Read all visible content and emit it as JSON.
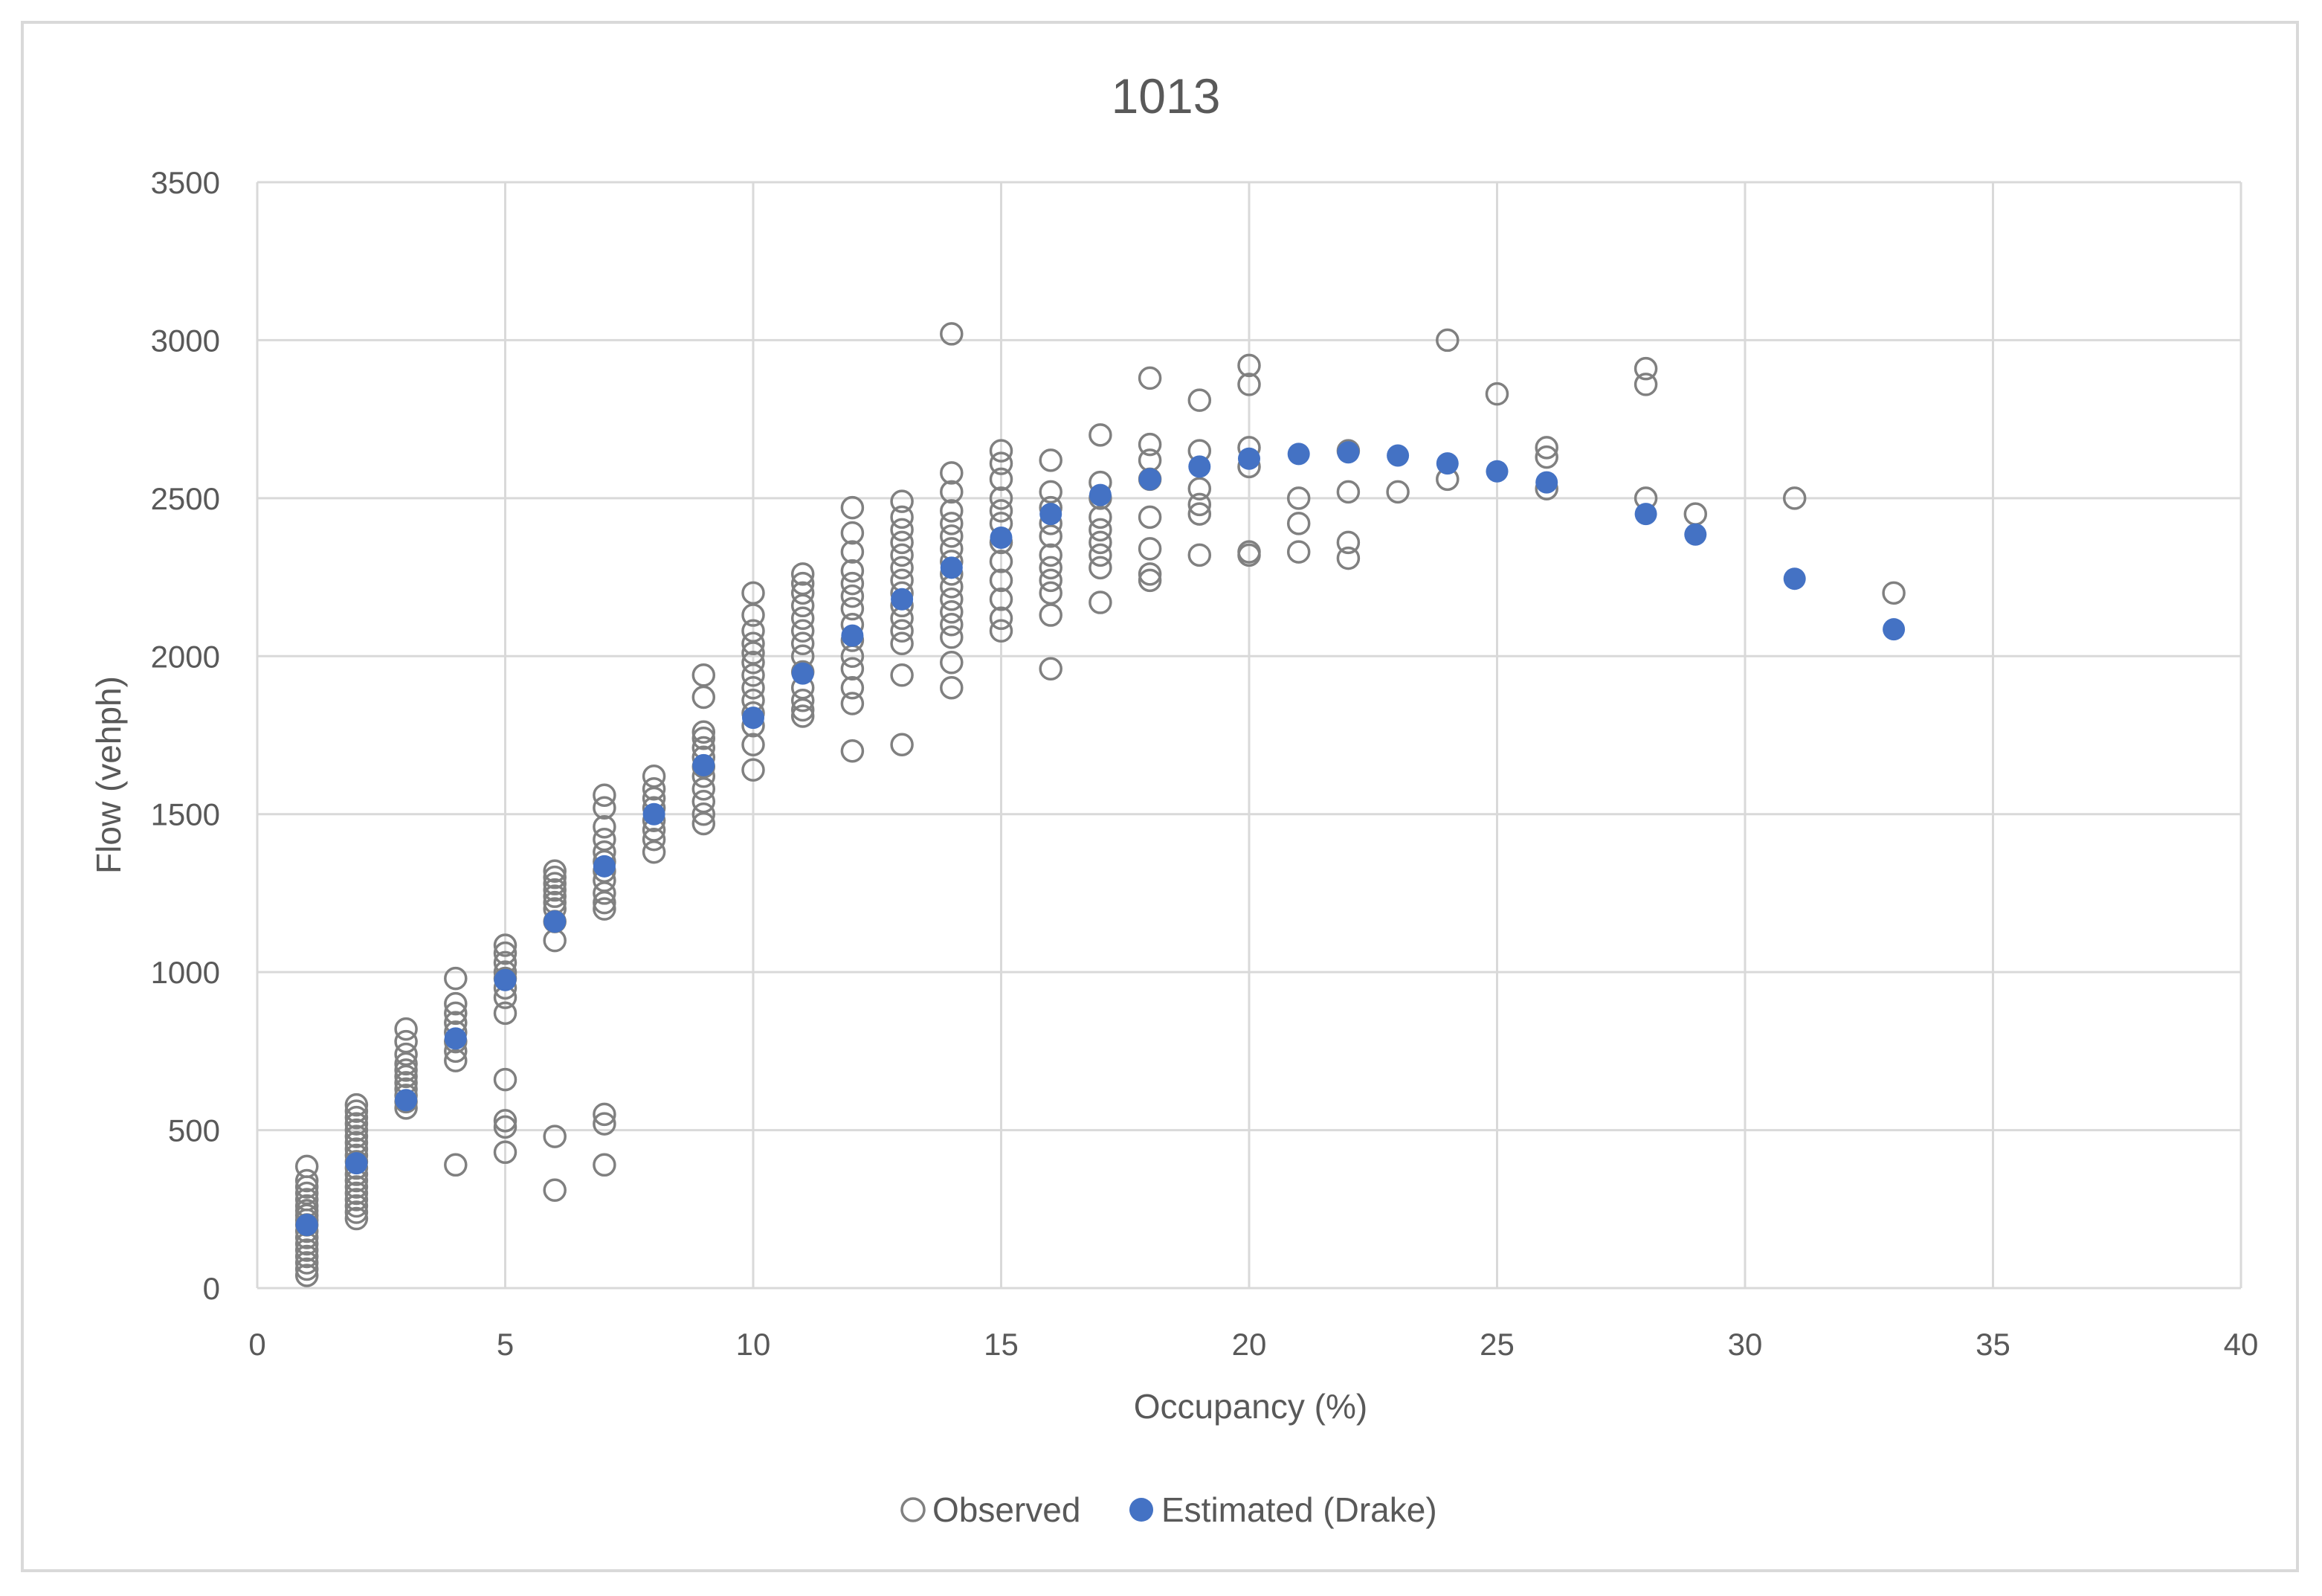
{
  "chart_data": {
    "type": "scatter",
    "title": "1013",
    "xlabel": "Occupancy (%)",
    "ylabel": "Flow (vehph)",
    "xlim": [
      0,
      40
    ],
    "ylim": [
      0,
      3500
    ],
    "x_ticks": [
      0,
      5,
      10,
      15,
      20,
      25,
      30,
      35,
      40
    ],
    "y_ticks": [
      0,
      500,
      1000,
      1500,
      2000,
      2500,
      3000,
      3500
    ],
    "x_tick_labels": [
      "0",
      "5",
      "10",
      "15",
      "20",
      "25",
      "30",
      "35",
      "40"
    ],
    "y_tick_labels": [
      "0",
      "500",
      "1000",
      "1500",
      "2000",
      "2500",
      "3000",
      "3500"
    ],
    "grid": true,
    "legend_position": "bottom",
    "colors": {
      "observed": "#808080",
      "estimated": "#4472c4",
      "grid": "#d9d9d9",
      "text": "#595959"
    },
    "series": [
      {
        "name": "Observed",
        "marker": "hollow-circle",
        "points": [
          [
            1,
            40
          ],
          [
            1,
            60
          ],
          [
            1,
            80
          ],
          [
            1,
            100
          ],
          [
            1,
            120
          ],
          [
            1,
            140
          ],
          [
            1,
            160
          ],
          [
            1,
            180
          ],
          [
            1,
            200
          ],
          [
            1,
            215
          ],
          [
            1,
            230
          ],
          [
            1,
            245
          ],
          [
            1,
            260
          ],
          [
            1,
            280
          ],
          [
            1,
            300
          ],
          [
            1,
            320
          ],
          [
            1,
            340
          ],
          [
            1,
            385
          ],
          [
            2,
            220
          ],
          [
            2,
            240
          ],
          [
            2,
            260
          ],
          [
            2,
            280
          ],
          [
            2,
            300
          ],
          [
            2,
            320
          ],
          [
            2,
            340
          ],
          [
            2,
            360
          ],
          [
            2,
            380
          ],
          [
            2,
            400
          ],
          [
            2,
            420
          ],
          [
            2,
            440
          ],
          [
            2,
            460
          ],
          [
            2,
            480
          ],
          [
            2,
            500
          ],
          [
            2,
            520
          ],
          [
            2,
            540
          ],
          [
            2,
            560
          ],
          [
            2,
            580
          ],
          [
            3,
            570
          ],
          [
            3,
            590
          ],
          [
            3,
            610
          ],
          [
            3,
            630
          ],
          [
            3,
            650
          ],
          [
            3,
            670
          ],
          [
            3,
            690
          ],
          [
            3,
            710
          ],
          [
            3,
            740
          ],
          [
            3,
            780
          ],
          [
            3,
            820
          ],
          [
            4,
            390
          ],
          [
            4,
            720
          ],
          [
            4,
            750
          ],
          [
            4,
            780
          ],
          [
            4,
            810
          ],
          [
            4,
            840
          ],
          [
            4,
            870
          ],
          [
            4,
            900
          ],
          [
            4,
            980
          ],
          [
            5,
            430
          ],
          [
            5,
            510
          ],
          [
            5,
            530
          ],
          [
            5,
            660
          ],
          [
            5,
            870
          ],
          [
            5,
            920
          ],
          [
            5,
            950
          ],
          [
            5,
            980
          ],
          [
            5,
            1000
          ],
          [
            5,
            1030
          ],
          [
            5,
            1060
          ],
          [
            5,
            1085
          ],
          [
            6,
            310
          ],
          [
            6,
            480
          ],
          [
            6,
            1100
          ],
          [
            6,
            1160
          ],
          [
            6,
            1200
          ],
          [
            6,
            1220
          ],
          [
            6,
            1240
          ],
          [
            6,
            1260
          ],
          [
            6,
            1280
          ],
          [
            6,
            1300
          ],
          [
            6,
            1320
          ],
          [
            7,
            390
          ],
          [
            7,
            520
          ],
          [
            7,
            550
          ],
          [
            7,
            1200
          ],
          [
            7,
            1220
          ],
          [
            7,
            1250
          ],
          [
            7,
            1290
          ],
          [
            7,
            1320
          ],
          [
            7,
            1350
          ],
          [
            7,
            1380
          ],
          [
            7,
            1420
          ],
          [
            7,
            1460
          ],
          [
            7,
            1520
          ],
          [
            7,
            1560
          ],
          [
            8,
            1380
          ],
          [
            8,
            1420
          ],
          [
            8,
            1450
          ],
          [
            8,
            1480
          ],
          [
            8,
            1520
          ],
          [
            8,
            1550
          ],
          [
            8,
            1580
          ],
          [
            8,
            1620
          ],
          [
            9,
            1470
          ],
          [
            9,
            1500
          ],
          [
            9,
            1540
          ],
          [
            9,
            1580
          ],
          [
            9,
            1620
          ],
          [
            9,
            1650
          ],
          [
            9,
            1680
          ],
          [
            9,
            1710
          ],
          [
            9,
            1740
          ],
          [
            9,
            1760
          ],
          [
            9,
            1870
          ],
          [
            9,
            1940
          ],
          [
            10,
            1640
          ],
          [
            10,
            1720
          ],
          [
            10,
            1780
          ],
          [
            10,
            1820
          ],
          [
            10,
            1860
          ],
          [
            10,
            1900
          ],
          [
            10,
            1940
          ],
          [
            10,
            1980
          ],
          [
            10,
            2010
          ],
          [
            10,
            2040
          ],
          [
            10,
            2080
          ],
          [
            10,
            2130
          ],
          [
            10,
            2200
          ],
          [
            11,
            1810
          ],
          [
            11,
            1830
          ],
          [
            11,
            1860
          ],
          [
            11,
            1900
          ],
          [
            11,
            1950
          ],
          [
            11,
            2000
          ],
          [
            11,
            2040
          ],
          [
            11,
            2080
          ],
          [
            11,
            2120
          ],
          [
            11,
            2160
          ],
          [
            11,
            2200
          ],
          [
            11,
            2230
          ],
          [
            11,
            2260
          ],
          [
            12,
            1700
          ],
          [
            12,
            1850
          ],
          [
            12,
            1900
          ],
          [
            12,
            1960
          ],
          [
            12,
            2000
          ],
          [
            12,
            2050
          ],
          [
            12,
            2100
          ],
          [
            12,
            2150
          ],
          [
            12,
            2190
          ],
          [
            12,
            2230
          ],
          [
            12,
            2270
          ],
          [
            12,
            2330
          ],
          [
            12,
            2390
          ],
          [
            12,
            2470
          ],
          [
            13,
            1720
          ],
          [
            13,
            1940
          ],
          [
            13,
            2040
          ],
          [
            13,
            2080
          ],
          [
            13,
            2120
          ],
          [
            13,
            2160
          ],
          [
            13,
            2200
          ],
          [
            13,
            2240
          ],
          [
            13,
            2280
          ],
          [
            13,
            2320
          ],
          [
            13,
            2360
          ],
          [
            13,
            2400
          ],
          [
            13,
            2440
          ],
          [
            13,
            2490
          ],
          [
            14,
            1900
          ],
          [
            14,
            1980
          ],
          [
            14,
            2060
          ],
          [
            14,
            2100
          ],
          [
            14,
            2140
          ],
          [
            14,
            2180
          ],
          [
            14,
            2220
          ],
          [
            14,
            2260
          ],
          [
            14,
            2300
          ],
          [
            14,
            2340
          ],
          [
            14,
            2380
          ],
          [
            14,
            2420
          ],
          [
            14,
            2460
          ],
          [
            14,
            2520
          ],
          [
            14,
            2580
          ],
          [
            14,
            3020
          ],
          [
            15,
            2080
          ],
          [
            15,
            2120
          ],
          [
            15,
            2180
          ],
          [
            15,
            2240
          ],
          [
            15,
            2300
          ],
          [
            15,
            2360
          ],
          [
            15,
            2420
          ],
          [
            15,
            2460
          ],
          [
            15,
            2500
          ],
          [
            15,
            2560
          ],
          [
            15,
            2610
          ],
          [
            15,
            2650
          ],
          [
            16,
            1960
          ],
          [
            16,
            2130
          ],
          [
            16,
            2200
          ],
          [
            16,
            2240
          ],
          [
            16,
            2280
          ],
          [
            16,
            2320
          ],
          [
            16,
            2380
          ],
          [
            16,
            2420
          ],
          [
            16,
            2470
          ],
          [
            16,
            2520
          ],
          [
            16,
            2620
          ],
          [
            17,
            2170
          ],
          [
            17,
            2280
          ],
          [
            17,
            2320
          ],
          [
            17,
            2360
          ],
          [
            17,
            2400
          ],
          [
            17,
            2440
          ],
          [
            17,
            2500
          ],
          [
            17,
            2550
          ],
          [
            17,
            2700
          ],
          [
            18,
            2240
          ],
          [
            18,
            2260
          ],
          [
            18,
            2340
          ],
          [
            18,
            2440
          ],
          [
            18,
            2560
          ],
          [
            18,
            2620
          ],
          [
            18,
            2670
          ],
          [
            18,
            2880
          ],
          [
            19,
            2320
          ],
          [
            19,
            2450
          ],
          [
            19,
            2480
          ],
          [
            19,
            2530
          ],
          [
            19,
            2650
          ],
          [
            19,
            2810
          ],
          [
            20,
            2320
          ],
          [
            20,
            2330
          ],
          [
            20,
            2600
          ],
          [
            20,
            2660
          ],
          [
            20,
            2860
          ],
          [
            20,
            2920
          ],
          [
            21,
            2330
          ],
          [
            21,
            2420
          ],
          [
            21,
            2500
          ],
          [
            22,
            2310
          ],
          [
            22,
            2360
          ],
          [
            22,
            2520
          ],
          [
            22,
            2650
          ],
          [
            23,
            2520
          ],
          [
            24,
            2560
          ],
          [
            24,
            3000
          ],
          [
            25,
            2830
          ],
          [
            26,
            2530
          ],
          [
            26,
            2630
          ],
          [
            26,
            2660
          ],
          [
            28,
            2500
          ],
          [
            28,
            2860
          ],
          [
            28,
            2910
          ],
          [
            29,
            2450
          ],
          [
            31,
            2500
          ],
          [
            33,
            2200
          ]
        ]
      },
      {
        "name": "Estimated (Drake)",
        "marker": "filled-circle",
        "points": [
          [
            1,
            200
          ],
          [
            2,
            395
          ],
          [
            3,
            595
          ],
          [
            4,
            790
          ],
          [
            5,
            975
          ],
          [
            6,
            1160
          ],
          [
            7,
            1335
          ],
          [
            8,
            1500
          ],
          [
            9,
            1655
          ],
          [
            10,
            1805
          ],
          [
            11,
            1945
          ],
          [
            12,
            2065
          ],
          [
            13,
            2180
          ],
          [
            14,
            2280
          ],
          [
            15,
            2375
          ],
          [
            16,
            2450
          ],
          [
            17,
            2510
          ],
          [
            18,
            2560
          ],
          [
            19,
            2600
          ],
          [
            20,
            2625
          ],
          [
            21,
            2640
          ],
          [
            22,
            2645
          ],
          [
            23,
            2635
          ],
          [
            24,
            2610
          ],
          [
            25,
            2585
          ],
          [
            26,
            2550
          ],
          [
            28,
            2450
          ],
          [
            29,
            2385
          ],
          [
            31,
            2245
          ],
          [
            33,
            2085
          ]
        ]
      }
    ]
  }
}
